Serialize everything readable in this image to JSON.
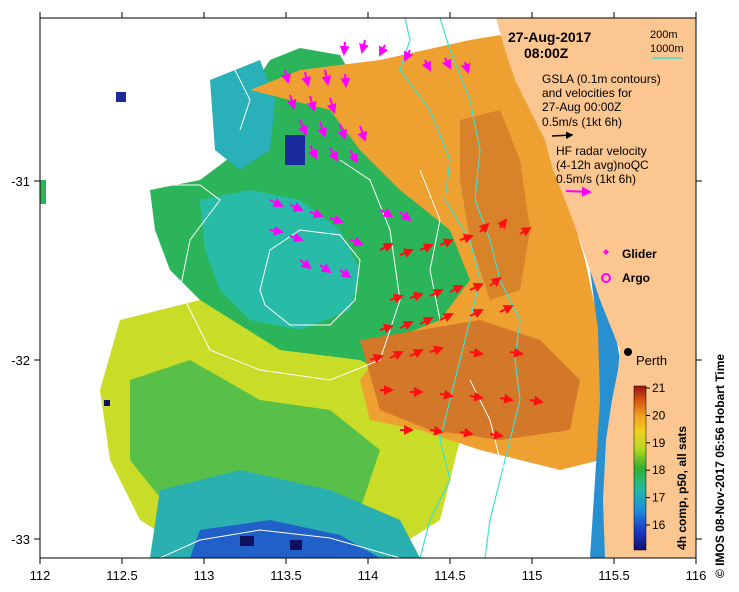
{
  "map": {
    "date": "27-Aug-2017",
    "time": "08:00Z",
    "depth_legend": {
      "label_200": "200m",
      "label_1000": "1000m"
    },
    "gsla_text": {
      "line1": "GSLA (0.1m contours)",
      "line2": "and velocities for",
      "line3": "27-Aug 00:00Z",
      "line4": "0.5m/s (1kt 6h)"
    },
    "hf_text": {
      "line1": "HF radar velocity",
      "line2": "(4-12h avg)noQC",
      "line3": "0.5m/s (1kt 6h)"
    },
    "glider_label": "Glider",
    "argo_label": "Argo",
    "city_label": "Perth",
    "credit": "© IMOS 08-Nov-2017 05:56 Hobart Time",
    "x_ticks": [
      "112",
      "112.5",
      "113",
      "113.5",
      "114",
      "114.5",
      "115",
      "115.5",
      "116"
    ],
    "y_ticks": [
      "-31",
      "-32",
      "-33"
    ],
    "colorbar": {
      "label": "4h comp, p50, all sats",
      "ticks": [
        "21",
        "20",
        "19",
        "18",
        "17",
        "16"
      ]
    },
    "colors": {
      "land": "#fcc690",
      "contour_200": "#40e0d0",
      "gsla_arrow": "#000000",
      "hf_arrow": "#ff00ff",
      "red_arrow": "#ff1010",
      "glider": "#ff00ff"
    }
  }
}
